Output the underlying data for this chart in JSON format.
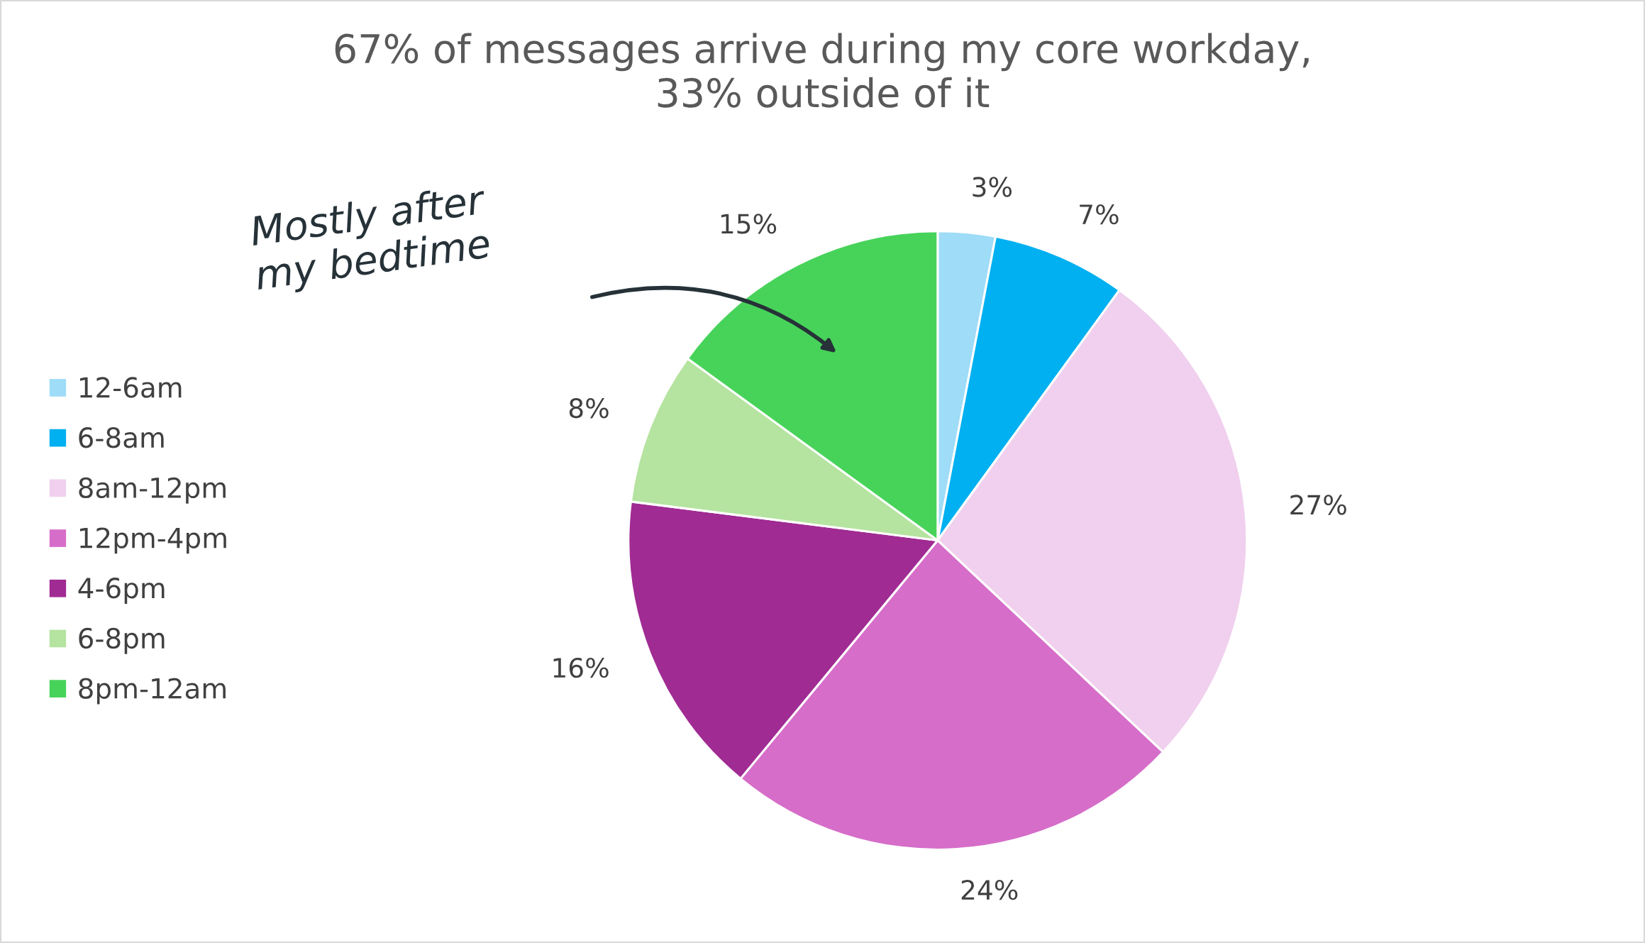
{
  "chart_data": {
    "type": "pie",
    "title": "67% of messages arrive during my core workday,\n33% outside of it",
    "categories": [
      "12-6am",
      "6-8am",
      "8am-12pm",
      "12pm-4pm",
      "4-6pm",
      "6-8pm",
      "8pm-12am"
    ],
    "values": [
      3,
      7,
      27,
      24,
      16,
      8,
      15
    ],
    "colors": [
      "#9edcf7",
      "#00b0f0",
      "#f0d0ee",
      "#d66dc9",
      "#a02b93",
      "#b5e3a0",
      "#47d35a"
    ],
    "value_labels": [
      "3%",
      "7%",
      "27%",
      "24%",
      "16%",
      "8%",
      "15%"
    ],
    "annotations": [
      {
        "text": "Mostly after\nmy bedtime",
        "x": "8pm-12am"
      }
    ],
    "legend": "left"
  }
}
